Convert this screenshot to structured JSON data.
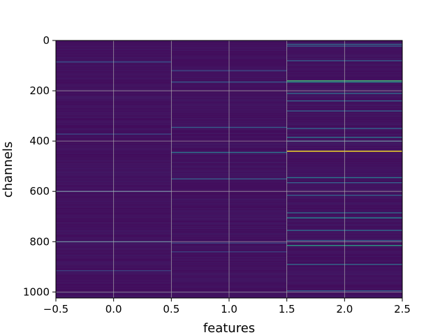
{
  "chart_data": {
    "type": "heatmap",
    "xlabel": "features",
    "ylabel": "channels",
    "colormap": "viridis",
    "xlim": [
      -0.5,
      2.5
    ],
    "ylim": [
      1024,
      0
    ],
    "y_inverted": true,
    "grid": true,
    "x_ticks": [
      "−0.5",
      "0.0",
      "0.5",
      "1.0",
      "1.5",
      "2.0",
      "2.5"
    ],
    "x_tick_values": [
      -0.5,
      0.0,
      0.5,
      1.0,
      1.5,
      2.0,
      2.5
    ],
    "y_ticks": [
      "0",
      "200",
      "400",
      "600",
      "800",
      "1000"
    ],
    "y_tick_values": [
      0,
      200,
      400,
      600,
      800,
      1000
    ],
    "columns": [
      0,
      1,
      2
    ],
    "rows": 1024,
    "background_value": 0.04,
    "highlight_rows": [
      {
        "col": 0,
        "channel": 85,
        "value": 0.25
      },
      {
        "col": 0,
        "channel": 372,
        "value": 0.22
      },
      {
        "col": 0,
        "channel": 600,
        "value": 0.25
      },
      {
        "col": 0,
        "channel": 800,
        "value": 0.3
      },
      {
        "col": 0,
        "channel": 915,
        "value": 0.2
      },
      {
        "col": 1,
        "channel": 120,
        "value": 0.22
      },
      {
        "col": 1,
        "channel": 165,
        "value": 0.28
      },
      {
        "col": 1,
        "channel": 345,
        "value": 0.3
      },
      {
        "col": 1,
        "channel": 445,
        "value": 0.38
      },
      {
        "col": 1,
        "channel": 550,
        "value": 0.3
      },
      {
        "col": 1,
        "channel": 805,
        "value": 0.22
      },
      {
        "col": 1,
        "channel": 840,
        "value": 0.2
      },
      {
        "col": 2,
        "channel": 15,
        "value": 0.35
      },
      {
        "col": 2,
        "channel": 22,
        "value": 0.3
      },
      {
        "col": 2,
        "channel": 80,
        "value": 0.3
      },
      {
        "col": 2,
        "channel": 160,
        "value": 0.65
      },
      {
        "col": 2,
        "channel": 165,
        "value": 0.45
      },
      {
        "col": 2,
        "channel": 210,
        "value": 0.35
      },
      {
        "col": 2,
        "channel": 240,
        "value": 0.32
      },
      {
        "col": 2,
        "channel": 280,
        "value": 0.3
      },
      {
        "col": 2,
        "channel": 350,
        "value": 0.32
      },
      {
        "col": 2,
        "channel": 385,
        "value": 0.38
      },
      {
        "col": 2,
        "channel": 400,
        "value": 0.3
      },
      {
        "col": 2,
        "channel": 440,
        "value": 1.0
      },
      {
        "col": 2,
        "channel": 545,
        "value": 0.4
      },
      {
        "col": 2,
        "channel": 565,
        "value": 0.3
      },
      {
        "col": 2,
        "channel": 615,
        "value": 0.32
      },
      {
        "col": 2,
        "channel": 685,
        "value": 0.35
      },
      {
        "col": 2,
        "channel": 705,
        "value": 0.45
      },
      {
        "col": 2,
        "channel": 755,
        "value": 0.35
      },
      {
        "col": 2,
        "channel": 795,
        "value": 0.3
      },
      {
        "col": 2,
        "channel": 815,
        "value": 0.55
      },
      {
        "col": 2,
        "channel": 890,
        "value": 0.35
      },
      {
        "col": 2,
        "channel": 995,
        "value": 0.3
      }
    ]
  }
}
